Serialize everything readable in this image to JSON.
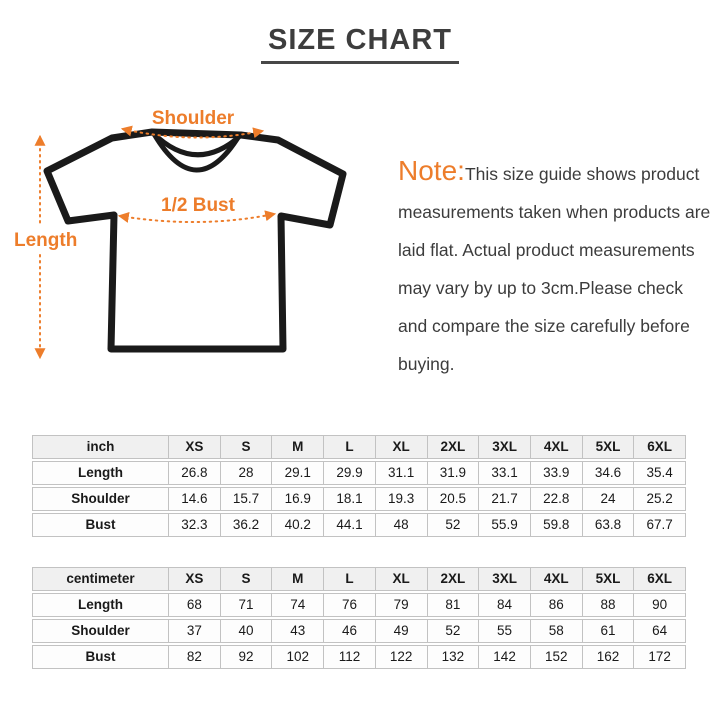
{
  "page_title": "SIZE CHART",
  "accent_color": "#ed7d2b",
  "diagram": {
    "shoulder_label": "Shoulder",
    "bust_label": "1/2 Bust",
    "length_label": "Length"
  },
  "note": {
    "prefix": "Note:",
    "text": "This size guide shows product measurements taken when products are laid flat. Actual product measurements may vary by up to 3cm.Please check and compare the size carefully before buying."
  },
  "tables": [
    {
      "unit_label": "inch",
      "sizes": [
        "XS",
        "S",
        "M",
        "L",
        "XL",
        "2XL",
        "3XL",
        "4XL",
        "5XL",
        "6XL"
      ],
      "rows": [
        {
          "label": "Length",
          "values": [
            "26.8",
            "28",
            "29.1",
            "29.9",
            "31.1",
            "31.9",
            "33.1",
            "33.9",
            "34.6",
            "35.4"
          ]
        },
        {
          "label": "Shoulder",
          "values": [
            "14.6",
            "15.7",
            "16.9",
            "18.1",
            "19.3",
            "20.5",
            "21.7",
            "22.8",
            "24",
            "25.2"
          ]
        },
        {
          "label": "Bust",
          "values": [
            "32.3",
            "36.2",
            "40.2",
            "44.1",
            "48",
            "52",
            "55.9",
            "59.8",
            "63.8",
            "67.7"
          ]
        }
      ]
    },
    {
      "unit_label": "centimeter",
      "sizes": [
        "XS",
        "S",
        "M",
        "L",
        "XL",
        "2XL",
        "3XL",
        "4XL",
        "5XL",
        "6XL"
      ],
      "rows": [
        {
          "label": "Length",
          "values": [
            "68",
            "71",
            "74",
            "76",
            "79",
            "81",
            "84",
            "86",
            "88",
            "90"
          ]
        },
        {
          "label": "Shoulder",
          "values": [
            "37",
            "40",
            "43",
            "46",
            "49",
            "52",
            "55",
            "58",
            "61",
            "64"
          ]
        },
        {
          "label": "Bust",
          "values": [
            "82",
            "92",
            "102",
            "112",
            "122",
            "132",
            "142",
            "152",
            "162",
            "172"
          ]
        }
      ]
    }
  ]
}
